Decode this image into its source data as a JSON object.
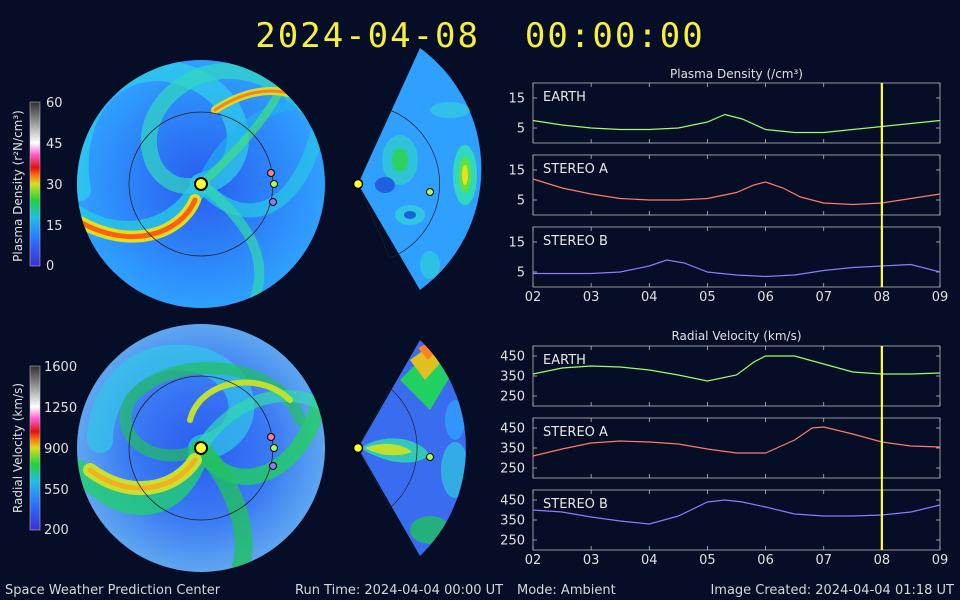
{
  "header": {
    "timestamp": "2024-04-08  00:00:00"
  },
  "colors": {
    "background": "#060d26",
    "title": "#f5f03a",
    "earth": "#9cff6a",
    "stereo_a": "#ff7a6a",
    "stereo_b": "#8a7cff",
    "time_marker": "#ffff40"
  },
  "colorbars": {
    "density": {
      "label": "Plasma Density (r²N/cm³)",
      "ticks": [
        "60",
        "45",
        "30",
        "15",
        "0"
      ]
    },
    "velocity": {
      "label": "Radial Velocity (km/s)",
      "ticks": [
        "1600",
        "1250",
        "900",
        "550",
        "200"
      ]
    }
  },
  "chart_data": [
    {
      "type": "line",
      "title": "Plasma Density (/cm³)",
      "xticks": [
        "02",
        "03",
        "04",
        "05",
        "06",
        "07",
        "08",
        "09"
      ],
      "xlim": [
        2,
        9
      ],
      "ylim": [
        0,
        20
      ],
      "yticks": [
        "15",
        "5"
      ],
      "marker_x": 8,
      "panels": [
        {
          "name": "EARTH",
          "x": [
            2,
            2.5,
            3,
            3.5,
            4,
            4.5,
            5,
            5.3,
            5.6,
            6,
            6.5,
            7,
            7.5,
            8,
            8.5,
            9
          ],
          "y": [
            7.5,
            6,
            5,
            4.5,
            4.5,
            5,
            7,
            9.5,
            8,
            4.5,
            3.5,
            3.5,
            4.5,
            5.5,
            6.5,
            7.5
          ]
        },
        {
          "name": "STEREO A",
          "x": [
            2,
            2.5,
            3,
            3.5,
            4,
            4.5,
            5,
            5.5,
            5.8,
            6,
            6.3,
            6.6,
            7,
            7.5,
            8,
            8.5,
            9
          ],
          "y": [
            12,
            9,
            7,
            5.5,
            5,
            5,
            5.5,
            7.5,
            10,
            11,
            9,
            6,
            4,
            3.5,
            4,
            5.5,
            7
          ]
        },
        {
          "name": "STEREO B",
          "x": [
            2,
            2.5,
            3,
            3.5,
            4,
            4.3,
            4.6,
            5,
            5.5,
            6,
            6.5,
            7,
            7.5,
            8,
            8.5,
            9
          ],
          "y": [
            4.5,
            4.5,
            4.5,
            5,
            7,
            9,
            8,
            5,
            4,
            3.5,
            4,
            5.5,
            6.5,
            7,
            7.5,
            5
          ]
        }
      ]
    },
    {
      "type": "line",
      "title": "Radial Velocity (km/s)",
      "xticks": [
        "02",
        "03",
        "04",
        "05",
        "06",
        "07",
        "08",
        "09"
      ],
      "xlim": [
        2,
        9
      ],
      "ylim": [
        200,
        500
      ],
      "yticks": [
        "450",
        "350",
        "250"
      ],
      "marker_x": 8,
      "panels": [
        {
          "name": "EARTH",
          "x": [
            2,
            2.5,
            3,
            3.5,
            4,
            4.5,
            5,
            5.5,
            5.8,
            6,
            6.5,
            7,
            7.5,
            8,
            8.5,
            9
          ],
          "y": [
            360,
            390,
            400,
            395,
            380,
            355,
            325,
            355,
            420,
            450,
            450,
            410,
            370,
            360,
            360,
            365
          ]
        },
        {
          "name": "STEREO A",
          "x": [
            2,
            2.5,
            3,
            3.5,
            4,
            4.5,
            5,
            5.5,
            6,
            6.5,
            6.8,
            7,
            7.5,
            8,
            8.5,
            9
          ],
          "y": [
            310,
            345,
            375,
            385,
            380,
            370,
            345,
            325,
            325,
            390,
            450,
            455,
            420,
            380,
            360,
            355
          ]
        },
        {
          "name": "STEREO B",
          "x": [
            2,
            2.5,
            3,
            3.5,
            4,
            4.5,
            5,
            5.3,
            5.6,
            6,
            6.5,
            7,
            7.5,
            8,
            8.5,
            9
          ],
          "y": [
            400,
            390,
            365,
            345,
            330,
            370,
            440,
            450,
            440,
            415,
            380,
            370,
            370,
            375,
            390,
            425
          ]
        }
      ]
    }
  ],
  "footer": {
    "org": "Space Weather Prediction Center",
    "run_time": "Run Time: 2024-04-04 00:00 UT",
    "mode": "Mode: Ambient",
    "created": "Image Created: 2024-04-04 01:18 UT"
  }
}
